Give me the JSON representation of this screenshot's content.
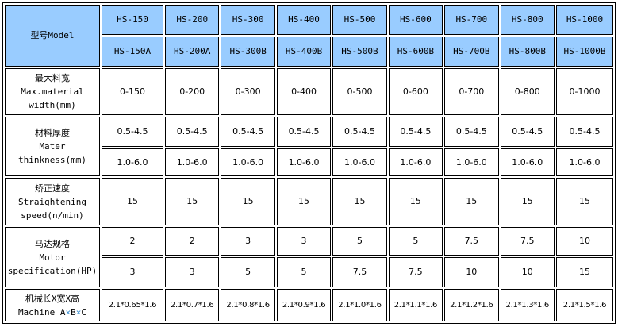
{
  "header": {
    "label": "型号Model",
    "models": [
      "HS-150",
      "HS-200",
      "HS-300",
      "HS-400",
      "HS-500",
      "HS-600",
      "HS-700",
      "HS-800",
      "HS-1000"
    ],
    "models_alt": [
      "HS-150A",
      "HS-200A",
      "HS-300B",
      "HS-400B",
      "HS-500B",
      "HS-600B",
      "HS-700B",
      "HS-800B",
      "HS-1000B"
    ]
  },
  "rows": {
    "width": {
      "cn": "最大料宽",
      "en1": "Max.material",
      "en2": "width(mm)",
      "values": [
        "0-150",
        "0-200",
        "0-300",
        "0-400",
        "0-500",
        "0-600",
        "0-700",
        "0-800",
        "0-1000"
      ]
    },
    "thickness": {
      "cn": "材料厚度",
      "en1": "Mater",
      "en2": "thinkness(mm)",
      "values": [
        "0.5-4.5",
        "0.5-4.5",
        "0.5-4.5",
        "0.5-4.5",
        "0.5-4.5",
        "0.5-4.5",
        "0.5-4.5",
        "0.5-4.5",
        "0.5-4.5"
      ],
      "values2": [
        "1.0-6.0",
        "1.0-6.0",
        "1.0-6.0",
        "1.0-6.0",
        "1.0-6.0",
        "1.0-6.0",
        "1.0-6.0",
        "1.0-6.0",
        "1.0-6.0"
      ]
    },
    "speed": {
      "cn": "矫正速度",
      "en1": "Straightening",
      "en2": "speed(n/min)",
      "values": [
        "15",
        "15",
        "15",
        "15",
        "15",
        "15",
        "15",
        "15",
        "15"
      ]
    },
    "motor": {
      "cn": "马达规格",
      "en1": "Motor",
      "en2": "specification(HP)",
      "values": [
        "2",
        "2",
        "3",
        "3",
        "5",
        "5",
        "7.5",
        "7.5",
        "10"
      ],
      "values2": [
        "3",
        "3",
        "5",
        "5",
        "7.5",
        "7.5",
        "10",
        "10",
        "15"
      ]
    },
    "machine": {
      "cn": "机械长X宽X高",
      "en_a": "Machine A",
      "x1": "×",
      "en_b": "B",
      "x2": "×",
      "en_c": "C",
      "values": [
        "2.1*0.65*1.6",
        "2.1*0.7*1.6",
        "2.1*0.8*1.6",
        "2.1*0.9*1.6",
        "2.1*1.0*1.6",
        "2.1*1.1*1.6",
        "2.1*1.2*1.6",
        "2.1*1.3*1.6",
        "2.1*1.5*1.6"
      ]
    }
  },
  "colors": {
    "header_bg": "#99ccff"
  }
}
